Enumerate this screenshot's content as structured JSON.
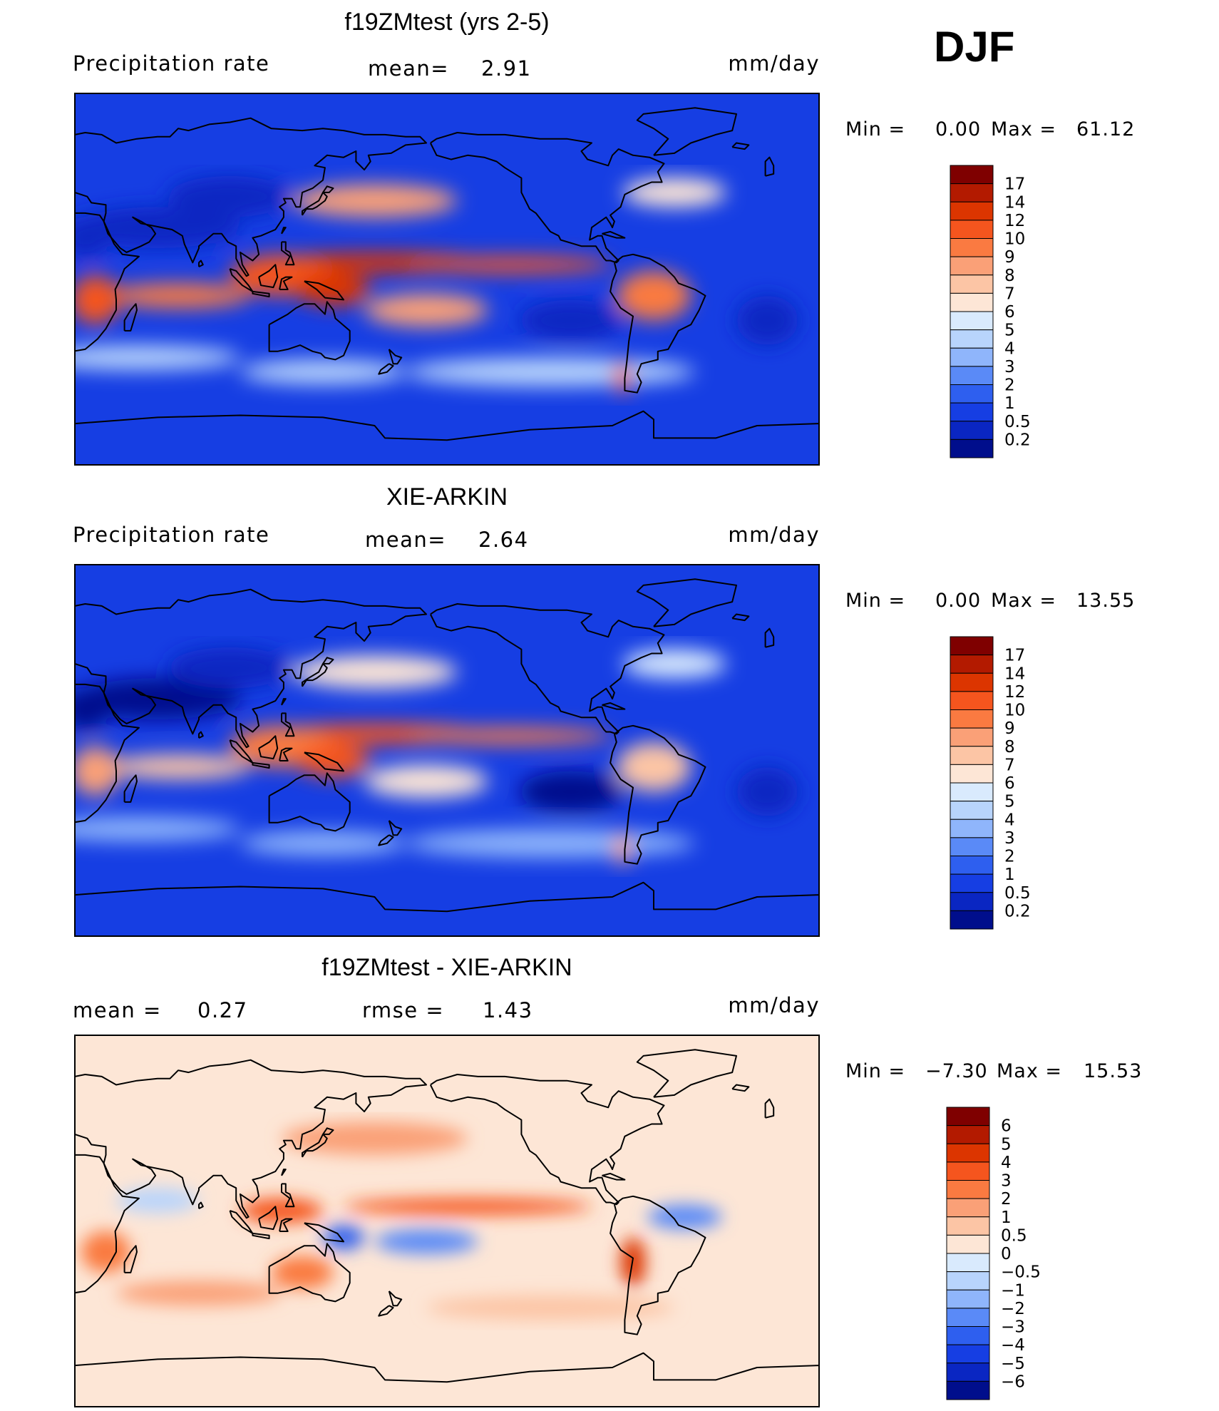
{
  "season": "DJF",
  "panels": [
    {
      "title": "f19ZMtest (yrs 2-5)",
      "left_label": "Precipitation  rate",
      "stat1_label": "mean=",
      "stat1_value": "2.91",
      "stat2_label": "",
      "stat2_value": "",
      "units": "mm/day",
      "min_label": "Min  =",
      "min_value": "0.00",
      "max_label": "Max  =",
      "max_value": "61.12",
      "palette": "abs",
      "colorbar_ticks": [
        "17",
        "14",
        "12",
        "10",
        "9",
        "8",
        "7",
        "6",
        "5",
        "4",
        "3",
        "2",
        "1",
        "0.5",
        "0.2"
      ]
    },
    {
      "title": "XIE-ARKIN",
      "left_label": "Precipitation  rate",
      "stat1_label": "mean=",
      "stat1_value": "2.64",
      "stat2_label": "",
      "stat2_value": "",
      "units": "mm/day",
      "min_label": "Min  =",
      "min_value": "0.00",
      "max_label": "Max  =",
      "max_value": "13.55",
      "palette": "abs",
      "colorbar_ticks": [
        "17",
        "14",
        "12",
        "10",
        "9",
        "8",
        "7",
        "6",
        "5",
        "4",
        "3",
        "2",
        "1",
        "0.5",
        "0.2"
      ]
    },
    {
      "title": "f19ZMtest - XIE-ARKIN",
      "left_label": "mean  =",
      "stat1_label": "",
      "stat1_value": "0.27",
      "stat2_label": "rmse  =",
      "stat2_value": "1.43",
      "units": "mm/day",
      "min_label": "Min  =",
      "min_value": "−7.30",
      "max_label": "Max  =",
      "max_value": "15.53",
      "palette": "diff",
      "colorbar_ticks": [
        "6",
        "5",
        "4",
        "3",
        "2",
        "1",
        "0.5",
        "0",
        "−0.5",
        "−1",
        "−2",
        "−3",
        "−4",
        "−5",
        "−6"
      ]
    }
  ],
  "colors": {
    "abs": [
      "#7f0000",
      "#b31a00",
      "#dc3500",
      "#f5551e",
      "#fa7a41",
      "#faa077",
      "#fcc5a5",
      "#fde6d6",
      "#d9eafd",
      "#b8d4fc",
      "#8fb5fb",
      "#5a8af7",
      "#2e5fef",
      "#163ee3",
      "#0a26c2",
      "#000e8c"
    ],
    "diff": [
      "#7f0000",
      "#b31a00",
      "#dc3500",
      "#f5551e",
      "#fa7a41",
      "#faa077",
      "#fcc5a5",
      "#fde6d6",
      "#d9eafd",
      "#b8d4fc",
      "#8fb5fb",
      "#5a8af7",
      "#2e5fef",
      "#163ee3",
      "#0a26c2",
      "#000e8c"
    ]
  },
  "chart_data": [
    {
      "type": "heatmap",
      "title": "f19ZMtest (yrs 2-5)",
      "variable": "Precipitation rate",
      "units": "mm/day",
      "mean": 2.91,
      "min": 0.0,
      "max": 61.12,
      "contour_levels": [
        0.2,
        0.5,
        1,
        2,
        3,
        4,
        5,
        6,
        7,
        8,
        9,
        10,
        12,
        14,
        17
      ],
      "projection": "cylindrical equidistant, Pacific-centered",
      "colormap": "dark blue (low) to dark red (high)"
    },
    {
      "type": "heatmap",
      "title": "XIE-ARKIN",
      "variable": "Precipitation rate",
      "units": "mm/day",
      "mean": 2.64,
      "min": 0.0,
      "max": 13.55,
      "contour_levels": [
        0.2,
        0.5,
        1,
        2,
        3,
        4,
        5,
        6,
        7,
        8,
        9,
        10,
        12,
        14,
        17
      ],
      "projection": "cylindrical equidistant, Pacific-centered",
      "colormap": "dark blue (low) to dark red (high)"
    },
    {
      "type": "heatmap",
      "title": "f19ZMtest - XIE-ARKIN",
      "units": "mm/day",
      "mean": 0.27,
      "rmse": 1.43,
      "min": -7.3,
      "max": 15.53,
      "contour_levels": [
        -6,
        -5,
        -4,
        -3,
        -2,
        -1,
        -0.5,
        0,
        0.5,
        1,
        2,
        3,
        4,
        5,
        6
      ],
      "projection": "cylindrical equidistant, Pacific-centered",
      "colormap": "dark blue (negative) to dark red (positive)"
    }
  ]
}
